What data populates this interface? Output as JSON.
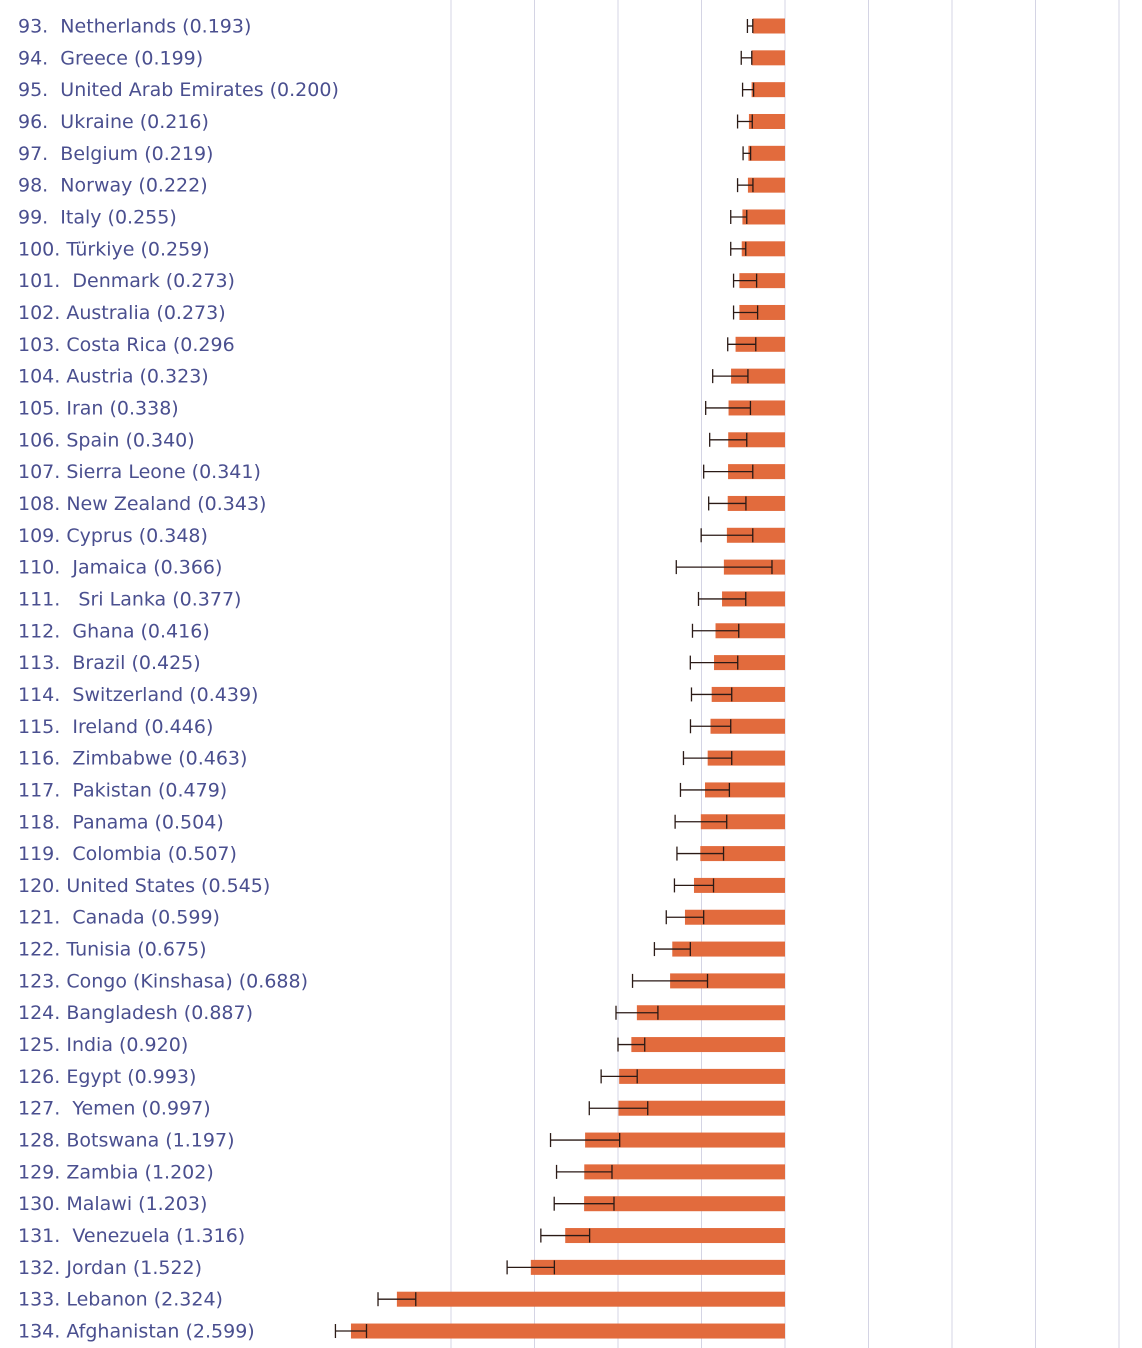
{
  "chart_data": {
    "type": "bar",
    "orientation": "horizontal",
    "direction": "leftward",
    "colors": {
      "bar": "#e26b3d",
      "label": "#4a4f8f",
      "grid": "#d4d4e4",
      "errorbar": "#2a1a16"
    },
    "xlim": [
      0,
      2.6
    ],
    "grid": true,
    "rows": [
      {
        "label": "93.  Netherlands (0.193)",
        "value": 0.193,
        "ci": [
          0.193,
          0.225
        ]
      },
      {
        "label": "94.  Greece (0.199)",
        "value": 0.199,
        "ci": [
          0.199,
          0.262
        ]
      },
      {
        "label": "95.  United Arab Emirates (0.200)",
        "value": 0.2,
        "ci": [
          0.188,
          0.254
        ]
      },
      {
        "label": "96.  Ukraine (0.216)",
        "value": 0.216,
        "ci": [
          0.196,
          0.284
        ]
      },
      {
        "label": "97.  Belgium (0.219)",
        "value": 0.219,
        "ci": [
          0.206,
          0.251
        ]
      },
      {
        "label": "98.  Norway (0.222)",
        "value": 0.222,
        "ci": [
          0.192,
          0.284
        ]
      },
      {
        "label": "99.  Italy (0.255)",
        "value": 0.255,
        "ci": [
          0.229,
          0.325
        ]
      },
      {
        "label": "100. Türkiye (0.259)",
        "value": 0.259,
        "ci": [
          0.235,
          0.325
        ]
      },
      {
        "label": "101.  Denmark (0.273)",
        "value": 0.273,
        "ci": [
          0.17,
          0.308
        ]
      },
      {
        "label": "102. Australia (0.273)",
        "value": 0.273,
        "ci": [
          0.164,
          0.308
        ]
      },
      {
        "label": "103. Costa Rica (0.296",
        "value": 0.296,
        "ci": [
          0.175,
          0.343
        ]
      },
      {
        "label": "104. Austria (0.323)",
        "value": 0.323,
        "ci": [
          0.222,
          0.433
        ]
      },
      {
        "label": "105. Iran (0.338)",
        "value": 0.338,
        "ci": [
          0.207,
          0.475
        ]
      },
      {
        "label": "106. Spain (0.340)",
        "value": 0.34,
        "ci": [
          0.229,
          0.451
        ]
      },
      {
        "label": "107. Sierra Leone (0.341)",
        "value": 0.341,
        "ci": [
          0.193,
          0.487
        ]
      },
      {
        "label": "108. New Zealand (0.343)",
        "value": 0.343,
        "ci": [
          0.234,
          0.457
        ]
      },
      {
        "label": "109. Cyprus (0.348)",
        "value": 0.348,
        "ci": [
          0.193,
          0.502
        ]
      },
      {
        "label": "110.  Jamaica (0.366)",
        "value": 0.366,
        "ci": [
          0.078,
          0.651
        ]
      },
      {
        "label": "111.   Sri Lanka (0.377)",
        "value": 0.377,
        "ci": [
          0.235,
          0.518
        ]
      },
      {
        "label": "112.  Ghana (0.416)",
        "value": 0.416,
        "ci": [
          0.277,
          0.554
        ]
      },
      {
        "label": "113.  Brazil (0.425)",
        "value": 0.425,
        "ci": [
          0.283,
          0.567
        ]
      },
      {
        "label": "114.  Switzerland (0.439)",
        "value": 0.439,
        "ci": [
          0.319,
          0.56
        ]
      },
      {
        "label": "115.  Ireland (0.446)",
        "value": 0.446,
        "ci": [
          0.325,
          0.566
        ]
      },
      {
        "label": "116.  Zimbabwe (0.463)",
        "value": 0.463,
        "ci": [
          0.319,
          0.608
        ]
      },
      {
        "label": "117.  Pakistan (0.479)",
        "value": 0.479,
        "ci": [
          0.333,
          0.626
        ]
      },
      {
        "label": "118.  Panama (0.504)",
        "value": 0.504,
        "ci": [
          0.349,
          0.658
        ]
      },
      {
        "label": "119.  Colombia (0.507)",
        "value": 0.507,
        "ci": [
          0.368,
          0.647
        ]
      },
      {
        "label": "120. United States (0.545)",
        "value": 0.545,
        "ci": [
          0.428,
          0.662
        ]
      },
      {
        "label": "121.  Canada (0.599)",
        "value": 0.599,
        "ci": [
          0.487,
          0.711
        ]
      },
      {
        "label": "122. Tunisia (0.675)",
        "value": 0.675,
        "ci": [
          0.567,
          0.782
        ]
      },
      {
        "label": "123. Congo (Kinshasa) (0.688)",
        "value": 0.688,
        "ci": [
          0.464,
          0.913
        ]
      },
      {
        "label": "124. Bangladesh (0.887)",
        "value": 0.887,
        "ci": [
          0.761,
          1.012
        ]
      },
      {
        "label": "125. India (0.920)",
        "value": 0.92,
        "ci": [
          0.84,
          1.0
        ]
      },
      {
        "label": "126. Egypt (0.993)",
        "value": 0.993,
        "ci": [
          0.885,
          1.101
        ]
      },
      {
        "label": "127.  Yemen (0.997)",
        "value": 0.997,
        "ci": [
          0.822,
          1.172
        ]
      },
      {
        "label": "128. Botswana (1.197)",
        "value": 1.197,
        "ci": [
          0.99,
          1.404
        ]
      },
      {
        "label": "129. Zambia (1.202)",
        "value": 1.202,
        "ci": [
          1.036,
          1.368
        ]
      },
      {
        "label": "130. Malawi (1.203)",
        "value": 1.203,
        "ci": [
          1.024,
          1.382
        ]
      },
      {
        "label": "131.  Venezuela (1.316)",
        "value": 1.316,
        "ci": [
          1.17,
          1.462
        ]
      },
      {
        "label": "132. Jordan (1.522)",
        "value": 1.522,
        "ci": [
          1.381,
          1.664
        ]
      },
      {
        "label": "133. Lebanon (2.324)",
        "value": 2.324,
        "ci": [
          2.211,
          2.437
        ]
      },
      {
        "label": "134. Afghanistan (2.599)",
        "value": 2.599,
        "ci": [
          2.506,
          2.692
        ]
      }
    ]
  }
}
